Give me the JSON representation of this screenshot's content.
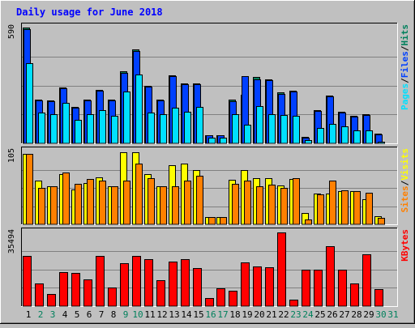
{
  "title": "Daily usage for June 2018",
  "colors": {
    "background": "#c0c0c0",
    "title": "#0000ff",
    "hits": "#00805c",
    "files": "#0040ff",
    "pages": "#00e0ff",
    "visits": "#ffff00",
    "sites": "#ff8000",
    "kbytes": "#ff0000",
    "weekend_day": "#00805c",
    "weekday": "#000000"
  },
  "chart_data": [
    {
      "type": "bar",
      "panel": "hits-files-pages",
      "ymax_label": "590",
      "ymax": 590,
      "x": [
        "1",
        "2",
        "3",
        "4",
        "5",
        "6",
        "7",
        "8",
        "9",
        "10",
        "11",
        "12",
        "13",
        "14",
        "15",
        "16",
        "17",
        "18",
        "19",
        "20",
        "21",
        "22",
        "23",
        "24",
        "25",
        "26",
        "27",
        "28",
        "29",
        "30",
        "31"
      ],
      "weekend_days": [
        "2",
        "3",
        "9",
        "10",
        "16",
        "17",
        "23",
        "24",
        "30",
        "31"
      ],
      "legend": [
        "Pages",
        "/",
        "Files",
        "/",
        "Hits"
      ],
      "series": [
        {
          "name": "Hits",
          "values": [
            590,
            224,
            220,
            285,
            184,
            222,
            272,
            224,
            366,
            480,
            294,
            224,
            348,
            306,
            304,
            43,
            43,
            221,
            249,
            338,
            328,
            258,
            270,
            35,
            171,
            244,
            160,
            140,
            148,
            48,
            0
          ]
        },
        {
          "name": "Files",
          "values": [
            580,
            220,
            215,
            280,
            180,
            218,
            267,
            220,
            360,
            470,
            290,
            220,
            342,
            300,
            300,
            40,
            40,
            216,
            343,
            328,
            320,
            250,
            265,
            30,
            166,
            240,
            155,
            136,
            143,
            44,
            0
          ]
        },
        {
          "name": "Pages",
          "values": [
            408,
            158,
            150,
            205,
            118,
            150,
            168,
            140,
            262,
            350,
            158,
            150,
            180,
            160,
            186,
            30,
            30,
            148,
            95,
            190,
            148,
            145,
            140,
            18,
            80,
            98,
            85,
            66,
            65,
            10,
            0
          ]
        }
      ]
    },
    {
      "type": "bar",
      "panel": "visits-sites",
      "ymax_label": "105",
      "ymax": 105,
      "x": [
        "1",
        "2",
        "3",
        "4",
        "5",
        "6",
        "7",
        "8",
        "9",
        "10",
        "11",
        "12",
        "13",
        "14",
        "15",
        "16",
        "17",
        "18",
        "19",
        "20",
        "21",
        "22",
        "23",
        "24",
        "25",
        "26",
        "27",
        "28",
        "29",
        "30",
        "31"
      ],
      "legend": [
        "Sites",
        "/",
        "Visits"
      ],
      "series": [
        {
          "name": "Visits",
          "values": [
            102,
            63,
            55,
            72,
            50,
            59,
            68,
            55,
            104,
            104,
            72,
            55,
            85,
            88,
            78,
            10,
            10,
            64,
            78,
            66,
            67,
            56,
            65,
            16,
            44,
            44,
            48,
            48,
            36,
            12,
            0
          ]
        },
        {
          "name": "Sites",
          "values": [
            102,
            52,
            55,
            75,
            58,
            65,
            63,
            55,
            63,
            87,
            66,
            55,
            55,
            63,
            70,
            10,
            10,
            58,
            63,
            55,
            57,
            52,
            66,
            7,
            43,
            63,
            49,
            48,
            45,
            9,
            0
          ]
        }
      ]
    },
    {
      "type": "bar",
      "panel": "kbytes",
      "ymax_label": "35494",
      "ymax": 35494,
      "x": [
        "1",
        "2",
        "3",
        "4",
        "5",
        "6",
        "7",
        "8",
        "9",
        "10",
        "11",
        "12",
        "13",
        "14",
        "15",
        "16",
        "17",
        "18",
        "19",
        "20",
        "21",
        "22",
        "23",
        "24",
        "25",
        "26",
        "27",
        "28",
        "29",
        "30",
        "31"
      ],
      "legend": [
        "KBytes"
      ],
      "series": [
        {
          "name": "KBytes",
          "values": [
            24000,
            11000,
            6000,
            16500,
            16000,
            13000,
            24000,
            9000,
            20500,
            24000,
            22500,
            12600,
            21500,
            22500,
            18500,
            4000,
            8500,
            7600,
            21000,
            19000,
            18800,
            35494,
            3000,
            17500,
            17500,
            29000,
            17500,
            11000,
            25000,
            8000,
            0
          ]
        }
      ]
    }
  ]
}
